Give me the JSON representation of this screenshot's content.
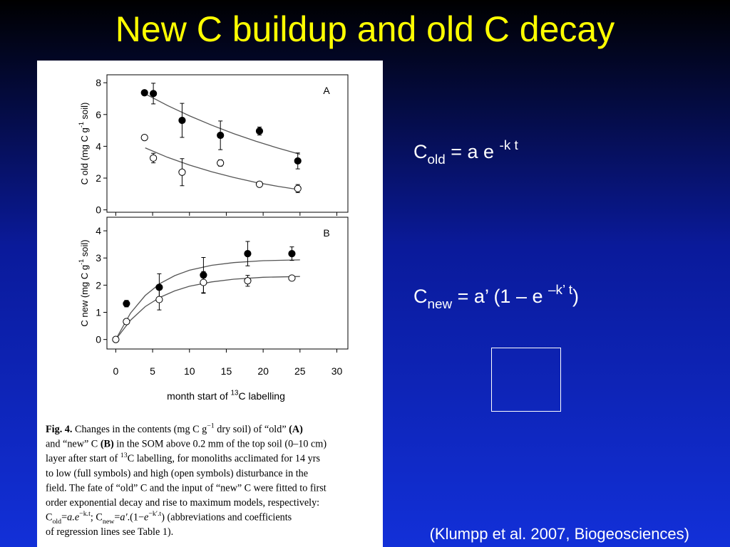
{
  "title": "New C buildup and old C decay",
  "equations": [
    [
      [
        "C",
        "n"
      ],
      [
        "old",
        "sub"
      ],
      [
        " = a e ",
        "n"
      ],
      [
        "-k t",
        "sup"
      ]
    ],
    [
      [
        "C",
        "n"
      ],
      [
        "new",
        "sub"
      ],
      [
        " = a’ (1 – e ",
        "n"
      ],
      [
        "–k’ t",
        "sup"
      ],
      [
        ")",
        "n"
      ]
    ]
  ],
  "citation": "(Klumpp et al. 2007, Biogeosciences)",
  "caption": [
    [
      [
        "Fig. 4.",
        "b"
      ],
      [
        "  Changes in the contents (mg C g",
        "n"
      ],
      [
        "−1",
        "sup"
      ],
      [
        " dry soil) of “old” ",
        "n"
      ],
      [
        "(A)",
        "b"
      ]
    ],
    [
      [
        "and “new” C ",
        "n"
      ],
      [
        "(B)",
        "b"
      ],
      [
        " in the SOM above 0.2 mm of the top soil (0–10 cm)",
        "n"
      ]
    ],
    [
      [
        "layer after start of ",
        "n"
      ],
      [
        "13",
        "sup"
      ],
      [
        "C labelling, for monoliths acclimated for 14 yrs",
        "n"
      ]
    ],
    [
      [
        "to low (full symbols) and high (open symbols) disturbance in the",
        "n"
      ]
    ],
    [
      [
        "field. The fate of “old” C and the input of “new” C were fitted to first",
        "n"
      ]
    ],
    [
      [
        "order exponential decay and rise to maximum models, respectively:",
        "n"
      ]
    ],
    [
      [
        "C",
        "n"
      ],
      [
        "old",
        "sub"
      ],
      [
        "=",
        "n"
      ],
      [
        "a.e",
        "i"
      ],
      [
        "−k.t",
        "sup"
      ],
      [
        "; C",
        "n"
      ],
      [
        "new",
        "sub"
      ],
      [
        "=",
        "n"
      ],
      [
        "a′",
        "i"
      ],
      [
        ".(1−",
        "n"
      ],
      [
        "e",
        "i"
      ],
      [
        "−k′.t",
        "sup"
      ],
      [
        ") (abbreviations and coefficients",
        "n"
      ]
    ],
    [
      [
        "of regression lines see Table 1).",
        "n"
      ]
    ]
  ],
  "chart_data": [
    {
      "type": "scatter",
      "panel_label": "A",
      "ylabel": [
        [
          "C old (mg C g",
          "n"
        ],
        [
          "-1",
          "sup"
        ],
        [
          " soil)",
          "n"
        ]
      ],
      "xlim": [
        -1.2,
        31.5
      ],
      "ylim": [
        -0.15,
        8.5
      ],
      "xticks": [
        0,
        5,
        10,
        15,
        20,
        25,
        30
      ],
      "show_xtick_labels": false,
      "yticks": [
        0,
        2,
        4,
        6,
        8
      ],
      "series": [
        {
          "color": "#000000",
          "marker": "filled",
          "x": [
            3.9,
            5.1,
            9.0,
            14.2,
            19.5,
            24.7
          ],
          "values": [
            7.37,
            7.32,
            5.63,
            4.69,
            4.96,
            3.08
          ],
          "errors": [
            null,
            0.65,
            1.07,
            0.9,
            0.25,
            0.5
          ]
        },
        {
          "color": "#000000",
          "marker": "open",
          "x": [
            3.9,
            5.1,
            9.0,
            14.2,
            19.5,
            24.7
          ],
          "values": [
            4.55,
            3.26,
            2.37,
            2.95,
            1.61,
            1.34
          ],
          "errors": [
            null,
            0.3,
            0.85,
            0.2,
            null,
            0.25
          ]
        }
      ],
      "fits": [
        {
          "color": "#555555",
          "x": [
            4,
            7,
            10,
            13,
            16,
            19,
            22,
            25
          ],
          "values": [
            7.3,
            6.57,
            5.92,
            5.33,
            4.8,
            4.32,
            3.89,
            3.5
          ]
        },
        {
          "color": "#555555",
          "x": [
            4,
            7,
            10,
            13,
            16,
            19,
            22,
            25
          ],
          "values": [
            3.9,
            3.31,
            2.82,
            2.4,
            2.04,
            1.73,
            1.48,
            1.26
          ]
        }
      ]
    },
    {
      "type": "scatter",
      "panel_label": "B",
      "ylabel": [
        [
          "C new (mg C g",
          "n"
        ],
        [
          "-1",
          "sup"
        ],
        [
          " soil)",
          "n"
        ]
      ],
      "xlabel": [
        [
          "month start of ",
          "n"
        ],
        [
          "13",
          "sup"
        ],
        [
          "C labelling",
          "n"
        ]
      ],
      "xlim": [
        -1.2,
        31.5
      ],
      "ylim": [
        -0.35,
        4.5
      ],
      "xticks": [
        0,
        5,
        10,
        15,
        20,
        25,
        30
      ],
      "show_xtick_labels": true,
      "yticks": [
        0,
        1,
        2,
        3,
        4
      ],
      "series": [
        {
          "color": "#000000",
          "marker": "filled",
          "x": [
            1.45,
            5.9,
            11.9,
            17.9,
            23.9
          ],
          "values": [
            1.32,
            1.92,
            2.37,
            3.16,
            3.16
          ],
          "errors": [
            0.12,
            0.5,
            0.65,
            0.45,
            0.25
          ]
        },
        {
          "color": "#000000",
          "marker": "open",
          "x": [
            0,
            1.45,
            5.9,
            11.9,
            17.9,
            23.9
          ],
          "values": [
            0,
            0.66,
            1.47,
            2.1,
            2.16,
            2.26
          ],
          "errors": [
            null,
            null,
            0.38,
            0.4,
            0.2,
            null
          ]
        }
      ],
      "fits": [
        {
          "color": "#555555",
          "x": [
            0,
            2,
            4,
            6,
            8,
            10,
            13,
            16,
            20,
            25
          ],
          "values": [
            0,
            0.97,
            1.62,
            2.06,
            2.35,
            2.55,
            2.73,
            2.83,
            2.9,
            2.93
          ]
        },
        {
          "color": "#555555",
          "x": [
            0,
            2,
            4,
            6,
            8,
            10,
            13,
            16,
            20,
            25
          ],
          "values": [
            0,
            0.71,
            1.21,
            1.55,
            1.79,
            1.96,
            2.12,
            2.22,
            2.29,
            2.32
          ]
        }
      ]
    }
  ]
}
